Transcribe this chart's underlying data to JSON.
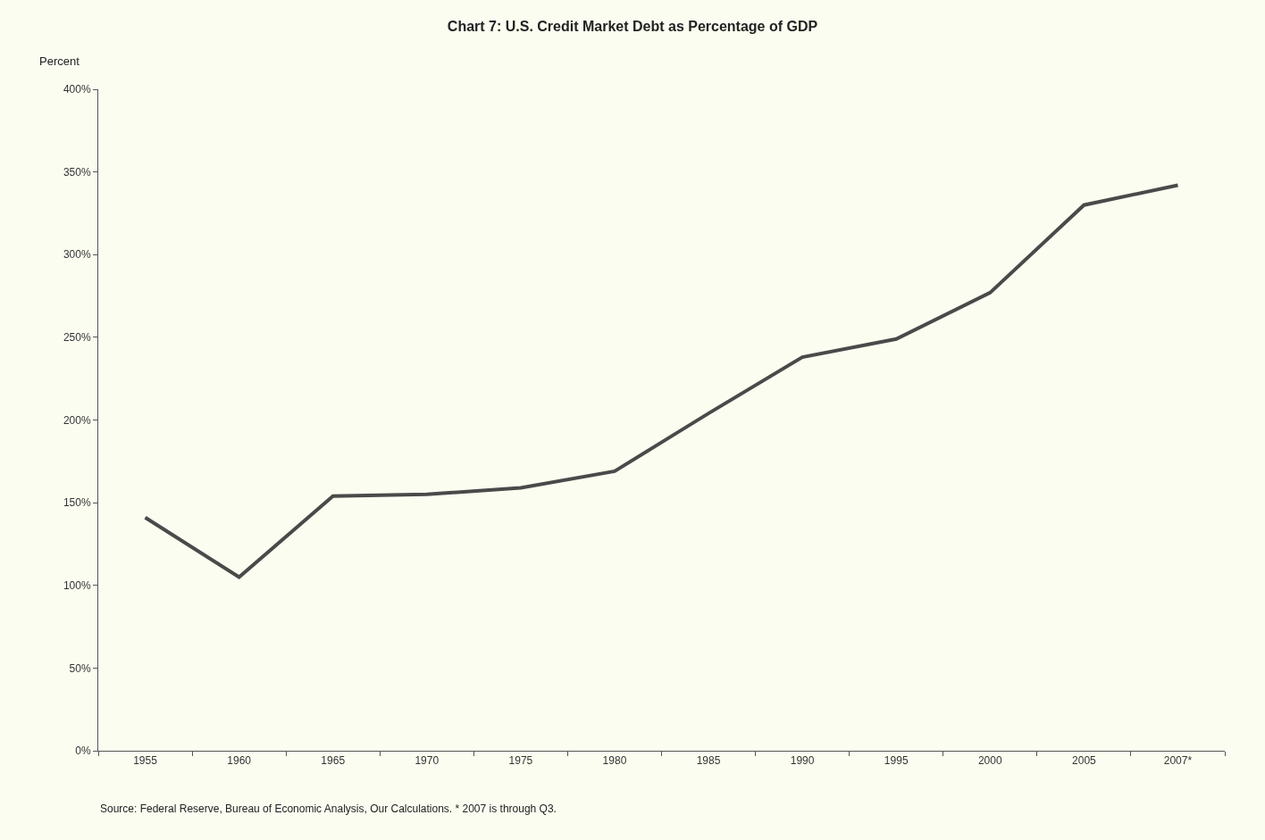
{
  "chart_data": {
    "type": "line",
    "title": "Chart 7: U.S. Credit Market Debt as Percentage of GDP",
    "ylabel": "Percent",
    "categories": [
      "1955",
      "1960",
      "1965",
      "1970",
      "1975",
      "1980",
      "1985",
      "1990",
      "1995",
      "2000",
      "2005",
      "2007*"
    ],
    "series": [
      {
        "color": "#4a4a4a",
        "values": [
          141,
          105,
          154,
          155,
          159,
          169,
          204,
          238,
          249,
          277,
          330,
          342
        ]
      }
    ],
    "ylim": [
      0,
      400
    ],
    "yticks": [
      {
        "value": 0,
        "label": "0%"
      },
      {
        "value": 50,
        "label": "50%"
      },
      {
        "value": 100,
        "label": "100%"
      },
      {
        "value": 150,
        "label": "150%"
      },
      {
        "value": 200,
        "label": "200%"
      },
      {
        "value": 250,
        "label": "250%"
      },
      {
        "value": 300,
        "label": "300%"
      },
      {
        "value": 350,
        "label": "350%"
      },
      {
        "value": 400,
        "label": "400%"
      }
    ],
    "grid": false,
    "marker": "none",
    "line_style": "solid",
    "annotations": [
      "Source: Federal Reserve, Bureau of Economic Analysis, Our Calculations. * 2007 is through Q3."
    ]
  }
}
